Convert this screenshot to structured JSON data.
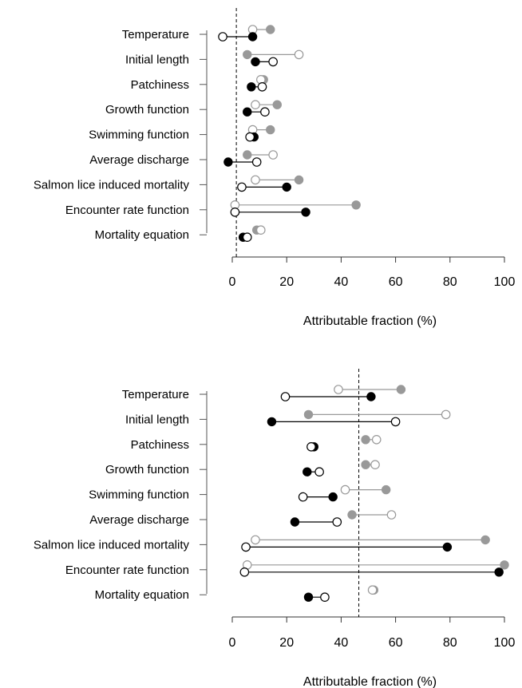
{
  "chart_data": [
    {
      "type": "dot-plot",
      "xlabel": "Attributable fraction (%)",
      "xlim": [
        0,
        100
      ],
      "xticks": [
        0,
        20,
        40,
        60,
        80,
        100
      ],
      "dashed_reference_x": 1.5,
      "categories": [
        "Temperature",
        "Initial length",
        "Patchiness",
        "Growth function",
        "Swimming function",
        "Average discharge",
        "Salmon lice induced mortality",
        "Encounter rate function",
        "Mortality equation"
      ],
      "series": [
        {
          "marker": "filled",
          "color": "#999999",
          "values": [
            14,
            5.5,
            11.5,
            16.5,
            14,
            5.5,
            24.5,
            45.5,
            9
          ]
        },
        {
          "marker": "open",
          "color": "#999999",
          "values": [
            7.5,
            24.5,
            10.5,
            8.5,
            7.5,
            15,
            8.5,
            1,
            10.5
          ]
        },
        {
          "marker": "filled",
          "color": "#000000",
          "values": [
            7.5,
            8.5,
            7,
            5.5,
            8,
            -1.5,
            20,
            27,
            4
          ]
        },
        {
          "marker": "open",
          "color": "#000000",
          "values": [
            -3.5,
            15,
            11,
            12,
            6.5,
            9,
            3.5,
            1,
            5.5
          ]
        }
      ]
    },
    {
      "type": "dot-plot",
      "xlabel": "Attributable fraction (%)",
      "xlim": [
        0,
        100
      ],
      "xticks": [
        0,
        20,
        40,
        60,
        80,
        100
      ],
      "dashed_reference_x": 46.5,
      "categories": [
        "Temperature",
        "Initial length",
        "Patchiness",
        "Growth function",
        "Swimming function",
        "Average discharge",
        "Salmon lice induced mortality",
        "Encounter rate function",
        "Mortality equation"
      ],
      "series": [
        {
          "marker": "filled",
          "color": "#999999",
          "values": [
            62,
            28,
            49,
            49,
            56.5,
            44,
            93,
            100,
            52
          ]
        },
        {
          "marker": "open",
          "color": "#999999",
          "values": [
            39,
            78.5,
            53,
            52.5,
            41.5,
            58.5,
            8.5,
            5.5,
            51.5
          ]
        },
        {
          "marker": "filled",
          "color": "#000000",
          "values": [
            51,
            14.5,
            30,
            27.5,
            37,
            23,
            79,
            98,
            28
          ]
        },
        {
          "marker": "open",
          "color": "#000000",
          "values": [
            19.5,
            60,
            29,
            32,
            26,
            38.5,
            5,
            4.5,
            34
          ]
        }
      ]
    }
  ]
}
